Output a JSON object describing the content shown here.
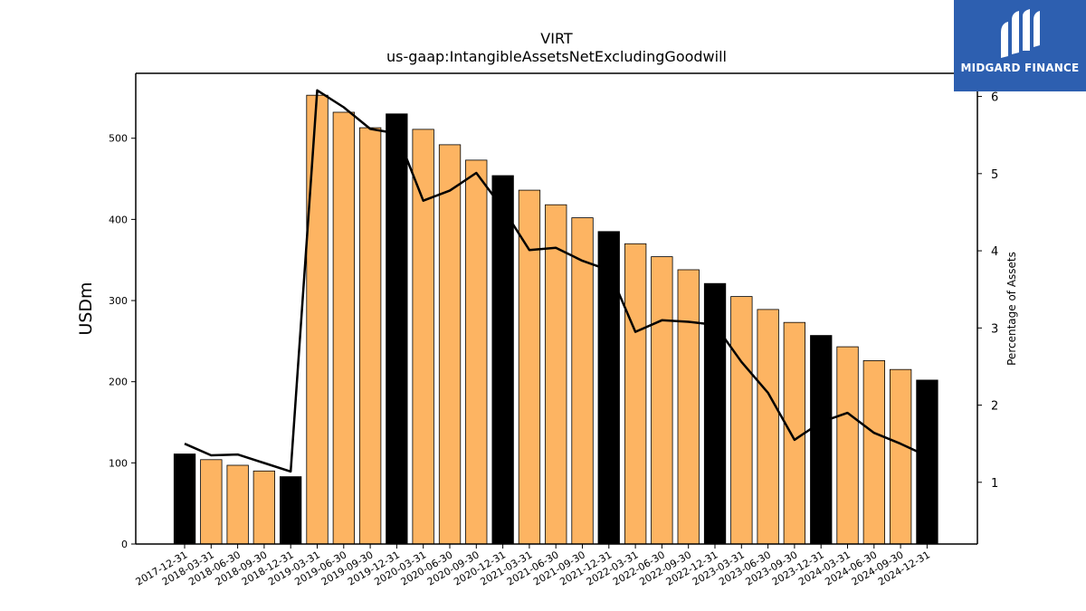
{
  "logo": {
    "text": "MIDGARD FINANCE",
    "background": "#2d5fb0"
  },
  "chart_data": {
    "type": "bar",
    "title": "VIRT",
    "subtitle": "us-gaap:IntangibleAssetsNetExcludingGoodwill",
    "ylabel": "USDm",
    "y2label": "Percentage of Assets",
    "ylim": [
      0,
      580
    ],
    "y2lim": [
      0.2,
      6.3
    ],
    "yticks": [
      0,
      100,
      200,
      300,
      400,
      500
    ],
    "y2ticks": [
      1,
      2,
      3,
      4,
      5,
      6
    ],
    "categories": [
      "2017-12-31",
      "2018-03-31",
      "2018-06-30",
      "2018-09-30",
      "2018-12-31",
      "2019-03-31",
      "2019-06-30",
      "2019-09-30",
      "2019-12-31",
      "2020-03-31",
      "2020-06-30",
      "2020-09-30",
      "2020-12-31",
      "2021-03-31",
      "2021-06-30",
      "2021-09-30",
      "2021-12-31",
      "2022-03-31",
      "2022-06-30",
      "2022-09-30",
      "2022-12-31",
      "2023-03-31",
      "2023-06-30",
      "2023-09-30",
      "2023-12-31",
      "2024-03-31",
      "2024-06-30",
      "2024-09-30",
      "2024-12-31"
    ],
    "series": [
      {
        "type": "bar",
        "values": [
          111,
          104,
          97,
          90,
          83,
          553,
          532,
          513,
          530,
          511,
          492,
          473,
          454,
          436,
          418,
          402,
          385,
          370,
          354,
          338,
          321,
          305,
          289,
          273,
          257,
          243,
          226,
          215,
          202
        ],
        "color": "#fdb462",
        "year_end_color": "#000000",
        "year_end_flags": [
          1,
          0,
          0,
          0,
          1,
          0,
          0,
          0,
          1,
          0,
          0,
          0,
          1,
          0,
          0,
          0,
          1,
          0,
          0,
          0,
          1,
          0,
          0,
          0,
          1,
          0,
          0,
          0,
          1
        ]
      },
      {
        "type": "line",
        "axis": "right",
        "values": [
          1.5,
          1.35,
          1.36,
          1.25,
          1.14,
          6.08,
          5.86,
          5.58,
          5.52,
          4.65,
          4.78,
          5.01,
          4.55,
          4.01,
          4.04,
          3.87,
          3.75,
          2.95,
          3.1,
          3.08,
          3.04,
          2.56,
          2.16,
          1.55,
          1.78,
          1.9,
          1.64,
          1.5,
          1.34
        ],
        "color": "#000000"
      }
    ]
  }
}
